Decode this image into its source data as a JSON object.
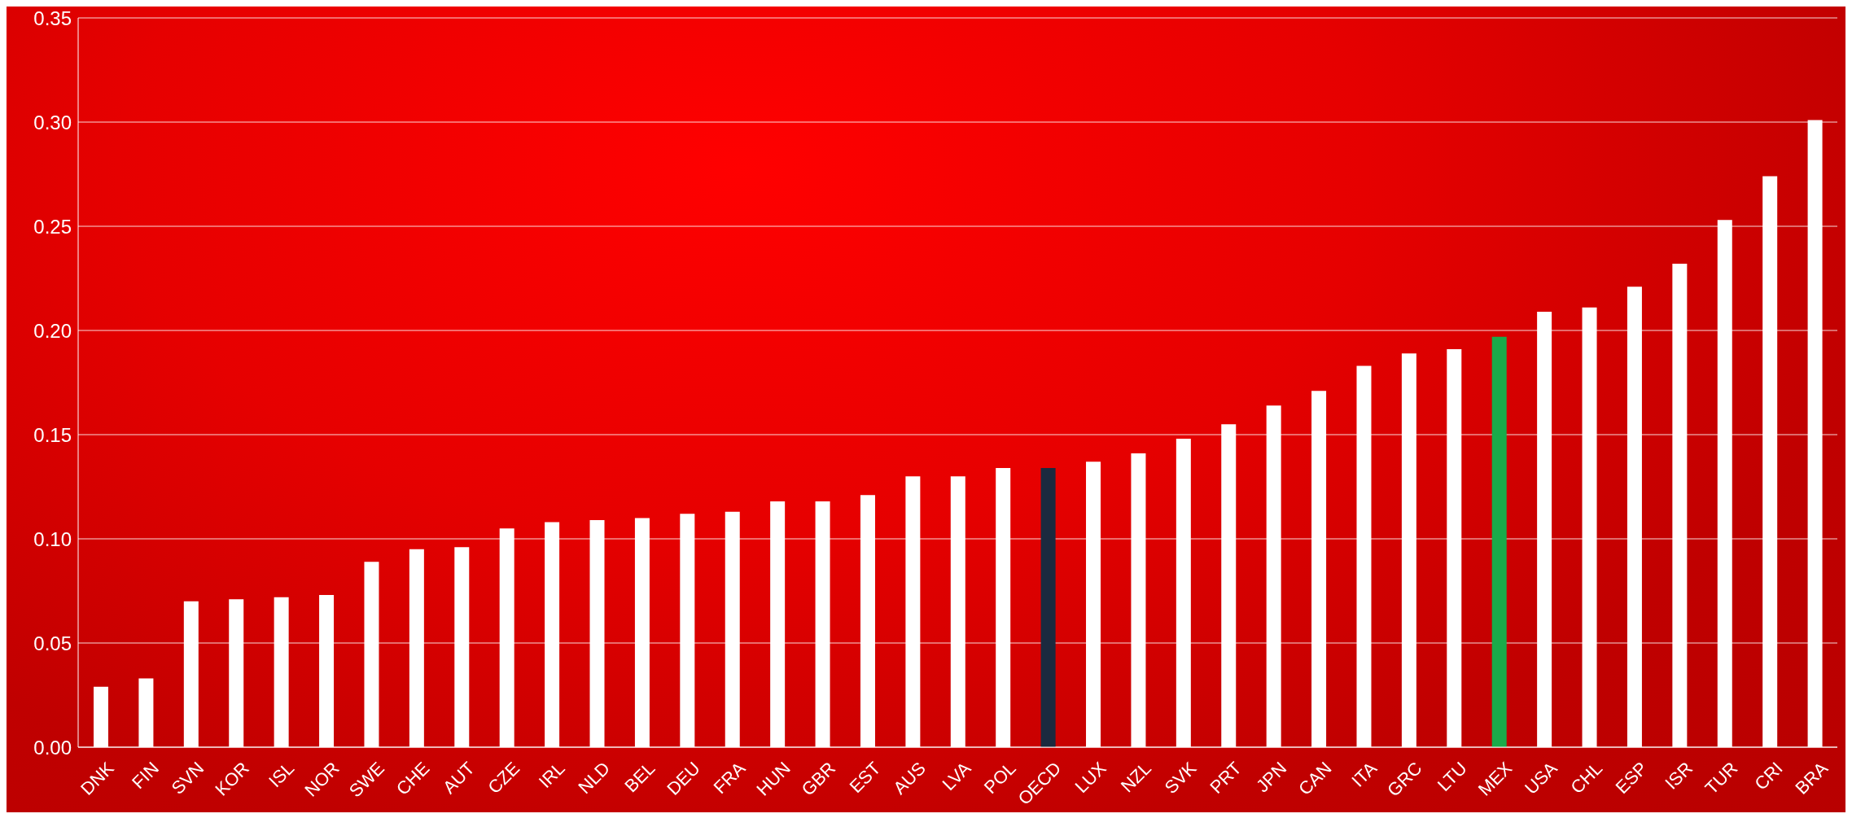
{
  "chart_data": {
    "type": "bar",
    "categories": [
      "DNK",
      "FIN",
      "SVN",
      "KOR",
      "ISL",
      "NOR",
      "SWE",
      "CHE",
      "AUT",
      "CZE",
      "IRL",
      "NLD",
      "BEL",
      "DEU",
      "FRA",
      "HUN",
      "GBR",
      "EST",
      "AUS",
      "LVA",
      "POL",
      "OECD",
      "LUX",
      "NZL",
      "SVK",
      "PRT",
      "JPN",
      "CAN",
      "ITA",
      "GRC",
      "LTU",
      "MEX",
      "USA",
      "CHL",
      "ESP",
      "ISR",
      "TUR",
      "CRI",
      "BRA"
    ],
    "values": [
      0.029,
      0.033,
      0.07,
      0.071,
      0.072,
      0.073,
      0.089,
      0.095,
      0.096,
      0.105,
      0.108,
      0.109,
      0.11,
      0.112,
      0.113,
      0.118,
      0.118,
      0.121,
      0.13,
      0.13,
      0.134,
      0.134,
      0.137,
      0.141,
      0.148,
      0.155,
      0.164,
      0.171,
      0.183,
      0.189,
      0.191,
      0.197,
      0.209,
      0.211,
      0.221,
      0.232,
      0.253,
      0.274,
      0.301
    ],
    "colors": [
      "#ffffff",
      "#ffffff",
      "#ffffff",
      "#ffffff",
      "#ffffff",
      "#ffffff",
      "#ffffff",
      "#ffffff",
      "#ffffff",
      "#ffffff",
      "#ffffff",
      "#ffffff",
      "#ffffff",
      "#ffffff",
      "#ffffff",
      "#ffffff",
      "#ffffff",
      "#ffffff",
      "#ffffff",
      "#ffffff",
      "#ffffff",
      "#1b2a3f",
      "#ffffff",
      "#ffffff",
      "#ffffff",
      "#ffffff",
      "#ffffff",
      "#ffffff",
      "#ffffff",
      "#ffffff",
      "#ffffff",
      "#1aab4a",
      "#ffffff",
      "#ffffff",
      "#ffffff",
      "#ffffff",
      "#ffffff",
      "#ffffff",
      "#ffffff"
    ],
    "ylim": [
      0,
      0.35
    ],
    "yticks": [
      {
        "value": 0,
        "label": "0.00"
      },
      {
        "value": 0.05,
        "label": "0.05"
      },
      {
        "value": 0.1,
        "label": "0.10"
      },
      {
        "value": 0.15,
        "label": "0.15"
      },
      {
        "value": 0.2,
        "label": "0.20"
      },
      {
        "value": 0.25,
        "label": "0.25"
      },
      {
        "value": 0.3,
        "label": "0.30"
      },
      {
        "value": 0.35,
        "label": "0.35"
      }
    ],
    "grid": "y"
  }
}
